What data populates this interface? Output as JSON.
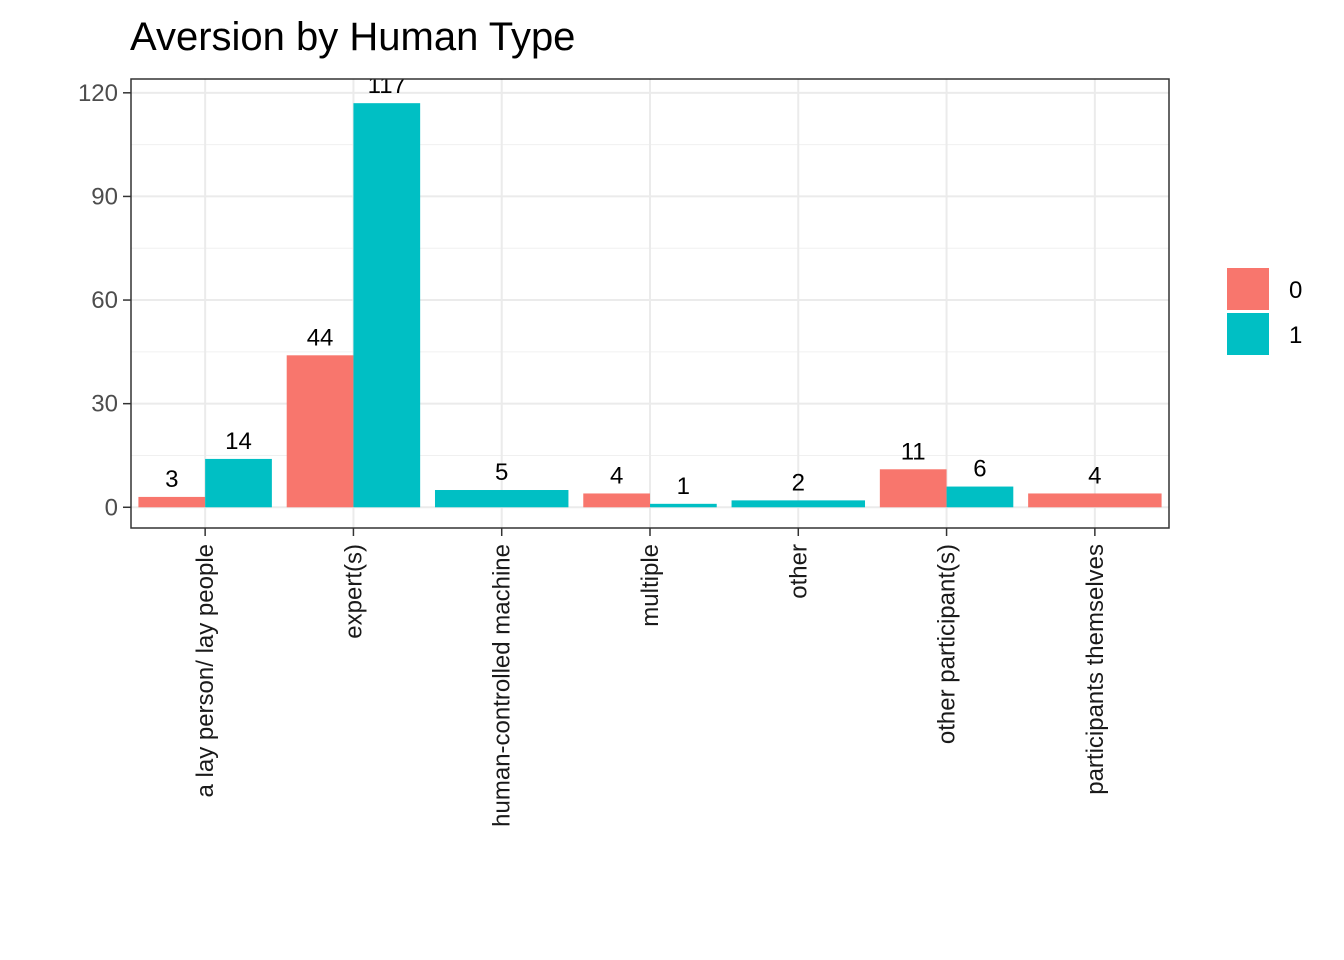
{
  "chart_data": {
    "type": "bar",
    "title": "Aversion by Human Type",
    "xlabel": "",
    "ylabel": "",
    "ylim": [
      -6,
      124
    ],
    "yticks": [
      0,
      30,
      60,
      90,
      120
    ],
    "grid": true,
    "legend_position": "right",
    "categories": [
      "a lay person/ lay people",
      "expert(s)",
      "human-controlled machine",
      "multiple",
      "other",
      "other participant(s)",
      "participants themselves"
    ],
    "series": [
      {
        "name": "0",
        "color": "#F8766D",
        "values": [
          3,
          44,
          null,
          4,
          null,
          11,
          4
        ]
      },
      {
        "name": "1",
        "color": "#00BFC4",
        "values": [
          14,
          117,
          5,
          1,
          2,
          6,
          null
        ]
      }
    ]
  }
}
